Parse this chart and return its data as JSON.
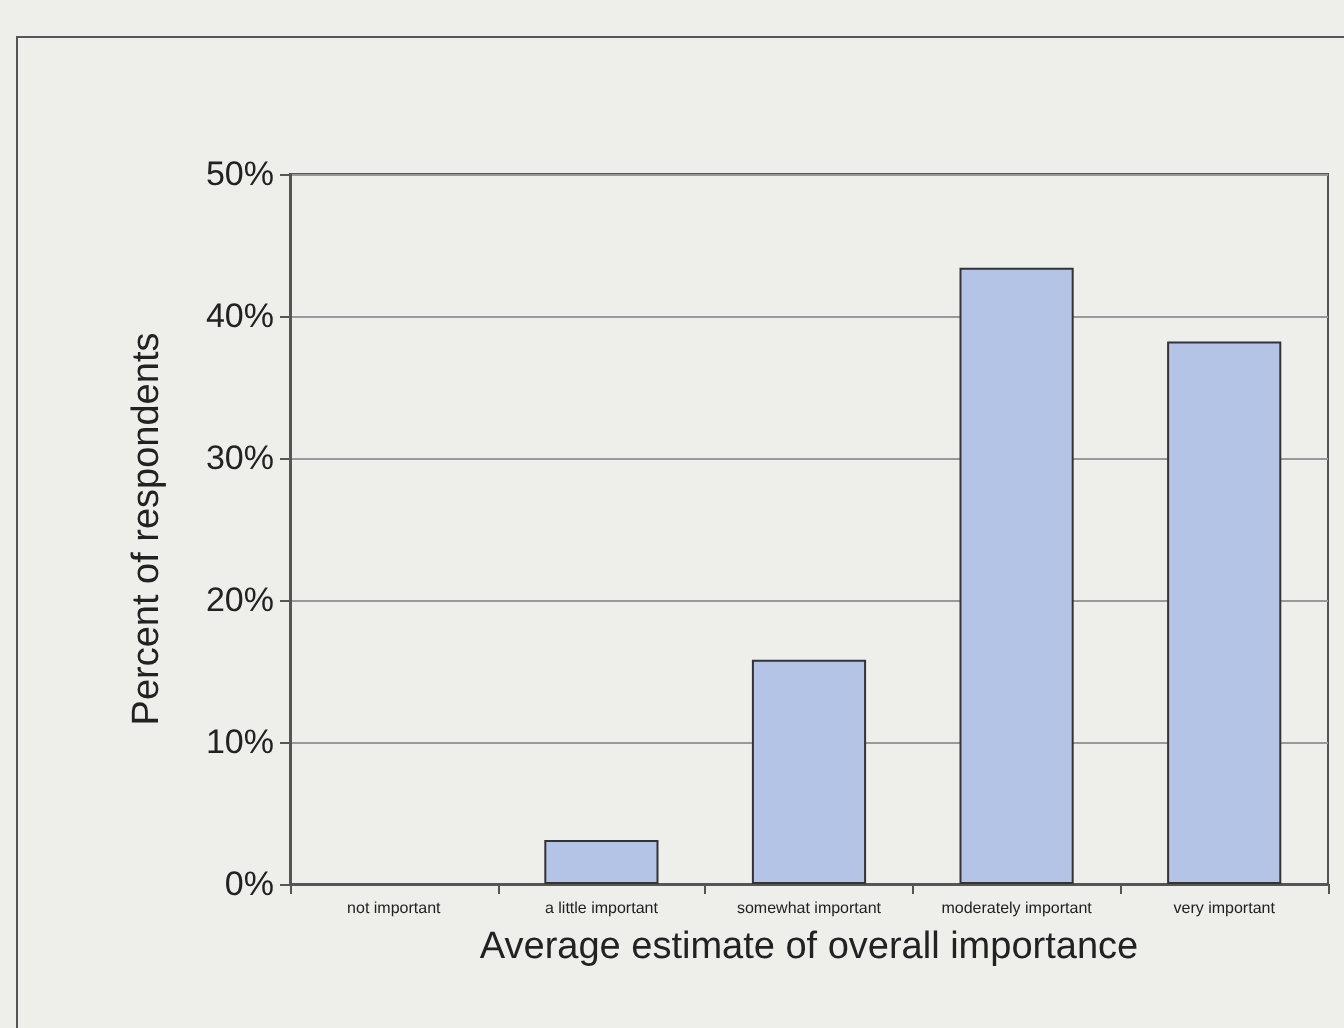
{
  "chart_data": {
    "type": "bar",
    "xlabel": "Average estimate of overall importance",
    "ylabel": "Percent of respondents",
    "categories": [
      "not important",
      "a little important",
      "somewhat important",
      "moderately important",
      "very important"
    ],
    "values": [
      0,
      3.1,
      15.8,
      43.4,
      38.2
    ],
    "color": "#b4c4e6",
    "ylim": [
      0,
      50
    ],
    "yticks": [
      {
        "value": 0,
        "label": "0%"
      },
      {
        "value": 10,
        "label": "10%"
      },
      {
        "value": 20,
        "label": "20%"
      },
      {
        "value": 30,
        "label": "30%"
      },
      {
        "value": 40,
        "label": "40%"
      },
      {
        "value": 50,
        "label": "50%"
      }
    ],
    "grid": "y"
  }
}
